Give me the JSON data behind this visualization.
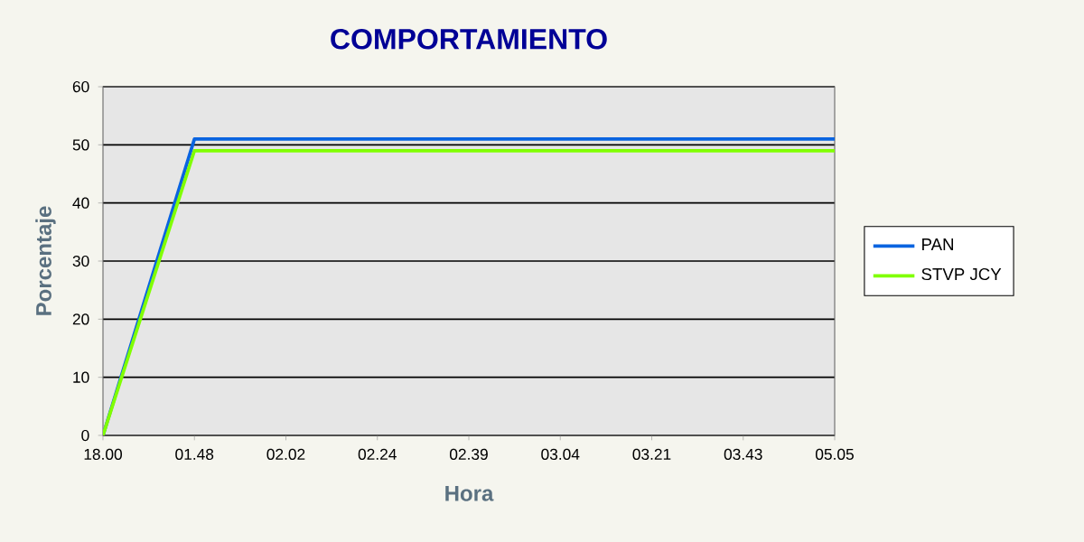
{
  "chart_data": {
    "type": "line",
    "title": "COMPORTAMIENTO",
    "xlabel": "Hora",
    "ylabel": "Porcentaje",
    "categories": [
      "18.00",
      "01.48",
      "02.02",
      "02.24",
      "02.39",
      "03.04",
      "03.21",
      "03.43",
      "05.05"
    ],
    "series": [
      {
        "name": "PAN",
        "color": "#0a64e0",
        "values": [
          0,
          51,
          51,
          51,
          51,
          51,
          51,
          51,
          51
        ]
      },
      {
        "name": "STVP JCY",
        "color": "#80ff00",
        "values": [
          0,
          49,
          49,
          49,
          49,
          49,
          49,
          49,
          49
        ]
      }
    ],
    "ylim": [
      0,
      60
    ],
    "yticks": [
      0,
      10,
      20,
      30,
      40,
      50,
      60
    ],
    "grid": "y",
    "legend": "right",
    "marker": "none"
  }
}
